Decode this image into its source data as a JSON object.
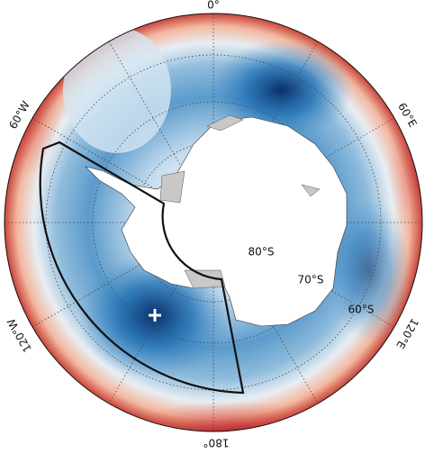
{
  "labels": {
    "longitude": [
      "0°",
      "60°E",
      "120°E",
      "180°",
      "120°W",
      "60°W"
    ],
    "latitude": [
      "80°S",
      "70°S",
      "60°S"
    ]
  }
}
